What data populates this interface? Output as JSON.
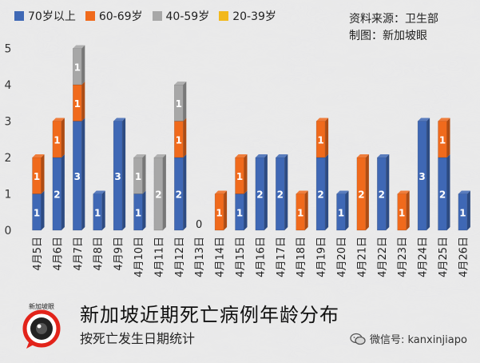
{
  "colors": {
    "s70": "#3f68b5",
    "s60": "#f06a1c",
    "s40": "#a7a7a7",
    "s20": "#f2b81c"
  },
  "legend": [
    {
      "label": "70岁以上",
      "color": "#3f68b5"
    },
    {
      "label": "60-69岁",
      "color": "#f06a1c"
    },
    {
      "label": "40-59岁",
      "color": "#a7a7a7"
    },
    {
      "label": "20-39岁",
      "color": "#f2b81c"
    }
  ],
  "source": {
    "line1": "资料来源：卫生部",
    "line2": "制图：新加坡眼"
  },
  "footer": {
    "title": "新加坡近期死亡病例年龄分布",
    "subtitle": "按死亡发生日期统计",
    "logo_text": "新加坡眼",
    "watermark": "微信号: kanxinjiapo"
  },
  "chart_data": {
    "type": "bar",
    "stacked": true,
    "categories": [
      "4月5日",
      "4月6日",
      "4月7日",
      "4月8日",
      "4月9日",
      "4月10日",
      "4月11日",
      "4月12日",
      "4月13日",
      "4月14日",
      "4月15日",
      "4月16日",
      "4月17日",
      "4月18日",
      "4月19日",
      "4月20日",
      "4月21日",
      "4月22日",
      "4月23日",
      "4月24日",
      "4月25日",
      "4月26日"
    ],
    "series": [
      {
        "name": "70岁以上",
        "values": [
          1,
          2,
          3,
          1,
          3,
          1,
          0,
          2,
          0,
          0,
          1,
          2,
          2,
          0,
          2,
          1,
          0,
          2,
          0,
          3,
          2,
          1
        ]
      },
      {
        "name": "60-69岁",
        "values": [
          1,
          1,
          1,
          0,
          0,
          0,
          0,
          1,
          0,
          1,
          1,
          0,
          0,
          1,
          1,
          0,
          2,
          0,
          1,
          0,
          1,
          0
        ]
      },
      {
        "name": "40-59岁",
        "values": [
          0,
          0,
          1,
          0,
          0,
          1,
          2,
          1,
          0,
          0,
          0,
          0,
          0,
          0,
          0,
          0,
          0,
          0,
          0,
          0,
          0,
          0
        ]
      },
      {
        "name": "20-39岁",
        "values": [
          0,
          0,
          0,
          0,
          0,
          0,
          0,
          0,
          0,
          0,
          0,
          0,
          0,
          0,
          0,
          0,
          0,
          0,
          0,
          0,
          0,
          0
        ]
      }
    ],
    "zero_labels": [
      "0"
    ],
    "yticks": [
      "0",
      "1",
      "2",
      "3",
      "4",
      "5"
    ],
    "ylim": [
      0,
      5
    ],
    "grid": false,
    "legend_position": "top"
  }
}
